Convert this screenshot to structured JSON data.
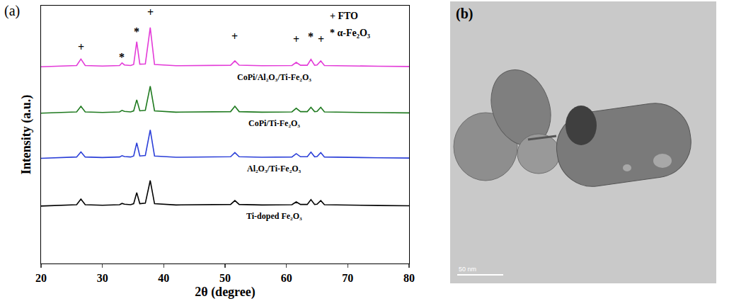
{
  "chart_data": {
    "type": "line",
    "panel_label": "(a)",
    "x_label": "2θ (degree)",
    "y_label": "Intensity (a.u.)",
    "xlim": [
      20,
      80
    ],
    "xticks": [
      20,
      30,
      40,
      50,
      60,
      70,
      80
    ],
    "ylim": [
      0,
      100
    ],
    "tick_labels": "x",
    "grid": false,
    "legend": "upper right",
    "legend_items": [
      {
        "symbol": "+",
        "text": "FTO"
      },
      {
        "symbol": "*",
        "text": "α-Fe₂O₃"
      }
    ],
    "peak_marks": [
      {
        "x": 26.5,
        "y": 84,
        "label": "+"
      },
      {
        "x": 33.2,
        "y": 80,
        "label": "*"
      },
      {
        "x": 35.6,
        "y": 90,
        "label": "*"
      },
      {
        "x": 37.8,
        "y": 97.5,
        "label": "+"
      },
      {
        "x": 51.6,
        "y": 88,
        "label": "+"
      },
      {
        "x": 61.6,
        "y": 87,
        "label": "+"
      },
      {
        "x": 64.0,
        "y": 88,
        "label": "*"
      },
      {
        "x": 65.6,
        "y": 87,
        "label": "+"
      }
    ],
    "x": [
      20,
      24,
      25.8,
      26.5,
      27.2,
      30,
      32.8,
      33.2,
      33.6,
      34.6,
      35.1,
      35.6,
      36.1,
      37.0,
      37.8,
      38.5,
      42,
      50.9,
      51.6,
      52.3,
      56,
      60.9,
      61.6,
      62.3,
      63.4,
      64.0,
      64.6,
      65.0,
      65.6,
      66.2,
      70,
      75,
      80
    ],
    "series": [
      {
        "name": "CoPi/Al₂O₃/Ti-Fe₂O₃",
        "color": "#e33ad8",
        "values": [
          76.3,
          76.6,
          76.8,
          79.3,
          76.8,
          76.6,
          76.8,
          77.8,
          77.0,
          76.8,
          77.2,
          86.0,
          77.3,
          77.4,
          91.5,
          77.2,
          76.7,
          76.9,
          78.6,
          76.9,
          76.7,
          76.8,
          78.0,
          76.9,
          76.9,
          79.2,
          76.9,
          77.0,
          78.6,
          76.8,
          76.6,
          76.5,
          76.4
        ]
      },
      {
        "name": "CoPi/Ti-Fe₂O₃",
        "color": "#1f7a1f",
        "values": [
          58.3,
          58.6,
          58.8,
          61.0,
          58.8,
          58.6,
          58.8,
          59.4,
          59.0,
          58.8,
          59.2,
          63.5,
          59.2,
          59.4,
          68.8,
          59.2,
          58.7,
          58.9,
          61.0,
          58.9,
          58.7,
          58.8,
          60.2,
          58.9,
          58.9,
          60.6,
          58.9,
          59.0,
          60.6,
          58.8,
          58.6,
          58.5,
          58.4
        ]
      },
      {
        "name": "Al₂O₃/Ti-Fe₂O₃",
        "color": "#2b3fd8",
        "values": [
          40.8,
          41.1,
          41.3,
          43.3,
          41.3,
          41.1,
          41.3,
          41.8,
          41.5,
          41.3,
          41.7,
          46.8,
          41.7,
          41.9,
          51.8,
          41.7,
          41.2,
          41.4,
          43.0,
          41.4,
          41.2,
          41.3,
          42.6,
          41.4,
          41.4,
          43.2,
          41.4,
          41.5,
          43.0,
          41.3,
          41.1,
          41.0,
          40.9
        ]
      },
      {
        "name": "Ti-doped Fe₂O₃",
        "color": "#000000",
        "values": [
          22.3,
          22.6,
          22.8,
          25.0,
          22.8,
          22.6,
          22.8,
          23.3,
          23.0,
          22.8,
          23.2,
          27.5,
          23.2,
          23.4,
          32.2,
          23.2,
          22.7,
          22.9,
          24.4,
          22.9,
          22.7,
          22.8,
          23.9,
          22.9,
          22.9,
          24.8,
          22.9,
          23.0,
          24.4,
          22.8,
          22.6,
          22.5,
          22.4
        ]
      }
    ]
  },
  "image_panel": {
    "panel_label": "(b)",
    "scale_bar": "50 nm"
  }
}
